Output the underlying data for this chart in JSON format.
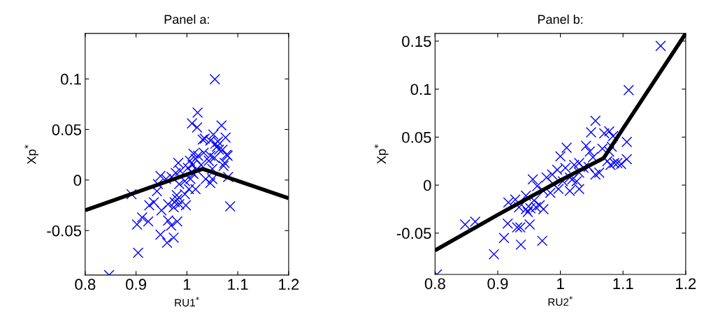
{
  "chart_data": [
    {
      "type": "scatter",
      "title": "Panel a:",
      "xlabel": "RU1$^{*}$",
      "ylabel": "Xp$^{*}$",
      "xlim": [
        0.8,
        1.2
      ],
      "xticks": [
        0.8,
        0.9,
        1,
        1.1,
        1.2
      ],
      "ylim": [
        -0.094,
        0.145
      ],
      "yticks": [
        -0.05,
        0,
        0.05,
        0.1
      ],
      "series": [
        {
          "marker": "cross",
          "color": "#0000ff",
          "x": [
            0.847,
            1.055,
            1.021,
            1.01,
            1.02,
            1.068,
            0.891,
            0.902,
            0.912,
            0.904,
            0.924,
            0.926,
            0.935,
            0.948,
            0.961,
            0.974,
            0.963,
            0.969,
            0.981,
            0.95,
            0.963,
            0.974,
            0.985,
            0.998,
            0.943,
            0.941,
            0.948,
            0.959,
            0.97,
            0.978,
            0.987,
            0.983,
            0.98,
            0.981,
            0.976,
            0.985,
            0.996,
            1.004,
            1.017,
            0.996,
            1.007,
            1.006,
            1.011,
            1.013,
            1.017,
            1.022,
            1.028,
            1.033,
            1.037,
            1.046,
            1.05,
            1.031,
            1.035,
            1.046,
            1.052,
            1.056,
            1.059,
            1.061,
            1.063,
            1.076,
            1.078,
            1.074,
            1.072,
            1.08,
            1.07,
            1.046,
            1.043,
            1.081,
            1.085,
            1.05,
            1.054,
            1.002,
            1.009,
            1.019,
            1.013
          ],
          "values": [
            -0.094,
            0.0997,
            0.0667,
            0.056,
            0.052,
            0.054,
            -0.014,
            -0.044,
            -0.037,
            -0.072,
            -0.041,
            -0.025,
            -0.022,
            -0.054,
            -0.062,
            -0.057,
            -0.04,
            -0.045,
            -0.041,
            -0.03,
            -0.024,
            -0.027,
            -0.024,
            -0.025,
            -0.004,
            -0.011,
            0.004,
            0.001,
            0.003,
            0.007,
            0.009,
            0.017,
            -0.015,
            -0.019,
            -0.022,
            -0.004,
            -0.014,
            -0.009,
            -0.009,
            -0.001,
            0.001,
            0.019,
            0.015,
            0.026,
            0.021,
            0.024,
            0.015,
            0.027,
            0.001,
            -0.003,
            0.001,
            0.04,
            0.041,
            0.039,
            0.045,
            0.036,
            0.033,
            0.038,
            0.03,
            0.042,
            0.025,
            0.017,
            0.014,
            0.024,
            0.03,
            0.024,
            0.019,
            0.003,
            -0.026,
            0.011,
            0.022,
            0.012,
            0.008,
            0.01,
            0.006
          ]
        },
        {
          "type": "line",
          "color": "#000000",
          "x": [
            0.8,
            1.031,
            1.2
          ],
          "values": [
            -0.03,
            0.011,
            -0.018
          ]
        }
      ]
    },
    {
      "type": "scatter",
      "title": "Panel b:",
      "xlabel": "RU2$^{*}$",
      "ylabel": "Xp$^{*}$",
      "xlim": [
        0.8,
        1.2
      ],
      "xticks": [
        0.8,
        0.9,
        1,
        1.1,
        1.2
      ],
      "ylim": [
        -0.093,
        0.158
      ],
      "yticks": [
        -0.05,
        0,
        0.05,
        0.1,
        0.15
      ],
      "series": [
        {
          "marker": "cross",
          "color": "#0000ff",
          "x": [
            0.803,
            1.16,
            1.109,
            1.106,
            1.106,
            1.056,
            1.049,
            1.07,
            1.078,
            1.084,
            0.848,
            0.864,
            0.894,
            0.91,
            0.916,
            0.931,
            0.936,
            0.937,
            0.951,
            0.971,
            0.917,
            0.928,
            0.934,
            0.945,
            0.948,
            0.952,
            0.961,
            0.967,
            0.973,
            0.958,
            0.945,
            0.956,
            0.963,
            0.978,
            0.973,
            0.984,
            0.989,
            0.997,
            1.004,
            1.015,
            1.03,
            1.026,
            1.0,
            1.01,
            0.995,
            1.008,
            1.015,
            1.022,
            1.03,
            1.037,
            1.041,
            1.047,
            1.052,
            1.056,
            1.062,
            1.067,
            1.075,
            1.08,
            1.086,
            1.091,
            1.097,
            1.078,
            1.082,
            1.045,
            1.03,
            1.019,
            0.987
          ],
          "values": [
            -0.093,
            0.145,
            0.099,
            0.045,
            0.027,
            0.067,
            0.055,
            0.054,
            0.056,
            0.051,
            -0.041,
            -0.038,
            -0.072,
            -0.055,
            -0.04,
            -0.044,
            -0.044,
            -0.062,
            -0.041,
            -0.058,
            -0.018,
            -0.015,
            -0.023,
            -0.025,
            -0.028,
            -0.024,
            -0.023,
            -0.021,
            -0.025,
            -0.016,
            -0.011,
            0.006,
            -0.001,
            0.008,
            -0.006,
            -0.008,
            0.001,
            -0.004,
            0.004,
            -0.006,
            -0.004,
            0.004,
            0.03,
            0.039,
            0.016,
            0.018,
            0.008,
            0.021,
            0.023,
            0.018,
            0.041,
            0.035,
            0.029,
            0.011,
            0.013,
            0.038,
            0.025,
            0.021,
            0.023,
            0.023,
            0.022,
            0.035,
            0.04,
            0.019,
            0.013,
            0.006,
            0.011
          ]
        },
        {
          "type": "line",
          "color": "#000000",
          "x": [
            0.8,
            0.9,
            1.0,
            1.069,
            1.086,
            1.2
          ],
          "values": [
            -0.068,
            -0.031,
            0.005,
            0.028,
            0.045,
            0.158
          ]
        }
      ]
    }
  ]
}
